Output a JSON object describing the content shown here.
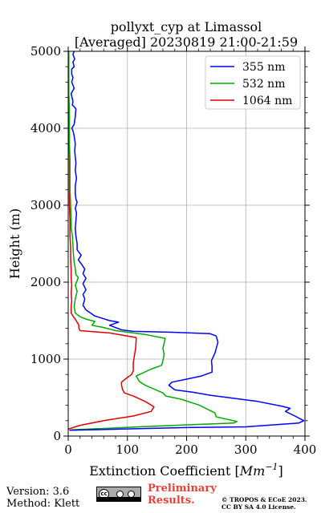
{
  "chart_data": {
    "type": "line",
    "title_line1": "pollyxt_cyp at Limassol",
    "title_line2": "[Averaged] 20230819 21:00-21:59",
    "xlabel_text": "Extinction Coefficient [",
    "xlabel_unit": "Mm",
    "xlabel_sup": "−1",
    "xlabel_close": "]",
    "ylabel": "Height (m)",
    "xlim": [
      0,
      400
    ],
    "ylim": [
      0,
      5000
    ],
    "xticks": [
      "0",
      "100",
      "200",
      "300",
      "400"
    ],
    "yticks": [
      "0",
      "1000",
      "2000",
      "3000",
      "4000",
      "5000"
    ],
    "grid": true,
    "legend_position": "top-right",
    "series": [
      {
        "name": "355 nm",
        "color": "#0000ff",
        "points": [
          [
            2,
            75
          ],
          [
            200,
            110
          ],
          [
            300,
            120
          ],
          [
            390,
            170
          ],
          [
            398,
            200
          ],
          [
            383,
            260
          ],
          [
            367,
            320
          ],
          [
            375,
            360
          ],
          [
            360,
            390
          ],
          [
            320,
            450
          ],
          [
            240,
            530
          ],
          [
            210,
            570
          ],
          [
            180,
            600
          ],
          [
            170,
            660
          ],
          [
            175,
            700
          ],
          [
            200,
            740
          ],
          [
            225,
            780
          ],
          [
            243,
            830
          ],
          [
            243,
            900
          ],
          [
            242,
            980
          ],
          [
            248,
            1080
          ],
          [
            253,
            1220
          ],
          [
            250,
            1300
          ],
          [
            240,
            1330
          ],
          [
            170,
            1350
          ],
          [
            110,
            1360
          ],
          [
            90,
            1380
          ],
          [
            70,
            1440
          ],
          [
            85,
            1480
          ],
          [
            70,
            1500
          ],
          [
            45,
            1560
          ],
          [
            30,
            1640
          ],
          [
            25,
            1700
          ],
          [
            28,
            1780
          ],
          [
            25,
            1840
          ],
          [
            30,
            1900
          ],
          [
            25,
            1980
          ],
          [
            30,
            2050
          ],
          [
            25,
            2110
          ],
          [
            28,
            2170
          ],
          [
            22,
            2240
          ],
          [
            17,
            2290
          ],
          [
            22,
            2350
          ],
          [
            15,
            2420
          ],
          [
            15,
            2500
          ],
          [
            13,
            2600
          ],
          [
            12,
            2700
          ],
          [
            13,
            2800
          ],
          [
            14,
            2900
          ],
          [
            12,
            2960
          ],
          [
            15,
            3040
          ],
          [
            13,
            3080
          ],
          [
            12,
            3150
          ],
          [
            12,
            3250
          ],
          [
            14,
            3350
          ],
          [
            12,
            3450
          ],
          [
            13,
            3550
          ],
          [
            11,
            3700
          ],
          [
            12,
            3800
          ],
          [
            10,
            3900
          ],
          [
            8,
            3970
          ],
          [
            6,
            4000
          ],
          [
            10,
            4050
          ],
          [
            12,
            4150
          ],
          [
            13,
            4250
          ],
          [
            10,
            4280
          ],
          [
            7,
            4300
          ],
          [
            8,
            4350
          ],
          [
            5,
            4450
          ],
          [
            10,
            4520
          ],
          [
            6,
            4600
          ],
          [
            8,
            4660
          ],
          [
            6,
            4700
          ],
          [
            6,
            4770
          ],
          [
            10,
            4800
          ],
          [
            8,
            4860
          ],
          [
            11,
            4900
          ],
          [
            8,
            4960
          ],
          [
            10,
            5000
          ]
        ]
      },
      {
        "name": "532 nm",
        "color": "#00aa00",
        "points": [
          [
            5,
            80
          ],
          [
            120,
            120
          ],
          [
            280,
            170
          ],
          [
            285,
            190
          ],
          [
            250,
            250
          ],
          [
            248,
            300
          ],
          [
            222,
            400
          ],
          [
            210,
            430
          ],
          [
            190,
            480
          ],
          [
            165,
            520
          ],
          [
            160,
            560
          ],
          [
            130,
            660
          ],
          [
            120,
            710
          ],
          [
            115,
            780
          ],
          [
            140,
            870
          ],
          [
            158,
            920
          ],
          [
            160,
            980
          ],
          [
            162,
            1060
          ],
          [
            160,
            1140
          ],
          [
            164,
            1270
          ],
          [
            130,
            1320
          ],
          [
            80,
            1370
          ],
          [
            60,
            1410
          ],
          [
            40,
            1440
          ],
          [
            45,
            1490
          ],
          [
            30,
            1520
          ],
          [
            20,
            1550
          ],
          [
            12,
            1600
          ],
          [
            10,
            1680
          ],
          [
            12,
            1780
          ],
          [
            15,
            1880
          ],
          [
            12,
            1960
          ],
          [
            15,
            2020
          ],
          [
            17,
            2060
          ],
          [
            13,
            2100
          ],
          [
            12,
            2180
          ],
          [
            10,
            2260
          ],
          [
            9,
            2350
          ],
          [
            8,
            2480
          ],
          [
            7,
            2600
          ],
          [
            5,
            2700
          ],
          [
            5,
            2800
          ],
          [
            4,
            3000
          ],
          [
            3,
            3200
          ],
          [
            3,
            3400
          ],
          [
            3,
            3600
          ],
          [
            2,
            3800
          ],
          [
            2,
            4000
          ],
          [
            2,
            4200
          ],
          [
            1,
            4500
          ],
          [
            1,
            4800
          ],
          [
            1,
            5000
          ]
        ]
      },
      {
        "name": "1064 nm",
        "color": "#dd0000",
        "points": [
          [
            0,
            90
          ],
          [
            20,
            140
          ],
          [
            60,
            200
          ],
          [
            110,
            260
          ],
          [
            140,
            320
          ],
          [
            145,
            380
          ],
          [
            130,
            450
          ],
          [
            110,
            520
          ],
          [
            95,
            560
          ],
          [
            92,
            600
          ],
          [
            90,
            660
          ],
          [
            90,
            700
          ],
          [
            98,
            750
          ],
          [
            107,
            800
          ],
          [
            110,
            850
          ],
          [
            110,
            950
          ],
          [
            112,
            1050
          ],
          [
            114,
            1150
          ],
          [
            115,
            1280
          ],
          [
            70,
            1340
          ],
          [
            20,
            1370
          ],
          [
            18,
            1400
          ],
          [
            18,
            1440
          ],
          [
            12,
            1520
          ],
          [
            8,
            1560
          ],
          [
            5,
            1600
          ],
          [
            5,
            1680
          ],
          [
            6,
            1760
          ],
          [
            5,
            1860
          ],
          [
            6,
            1960
          ],
          [
            5,
            2060
          ],
          [
            5,
            2160
          ],
          [
            4,
            2300
          ],
          [
            4,
            2450
          ],
          [
            3,
            2600
          ],
          [
            3,
            2800
          ],
          [
            2,
            3000
          ],
          [
            2,
            3300
          ],
          [
            2,
            3600
          ],
          [
            1,
            4000
          ],
          [
            1,
            4300
          ],
          [
            1,
            4600
          ],
          [
            1,
            5000
          ]
        ]
      }
    ]
  },
  "footer": {
    "version": "Version: 3.6",
    "method": "Method: Klett",
    "prelim_line1": "Preliminary",
    "prelim_line2": "Results.",
    "copyright_line1": "© TROPOS & ECoE 2023.",
    "copyright_line2": "CC BY SA 4.0 License.",
    "badge_text": "BY SA"
  }
}
